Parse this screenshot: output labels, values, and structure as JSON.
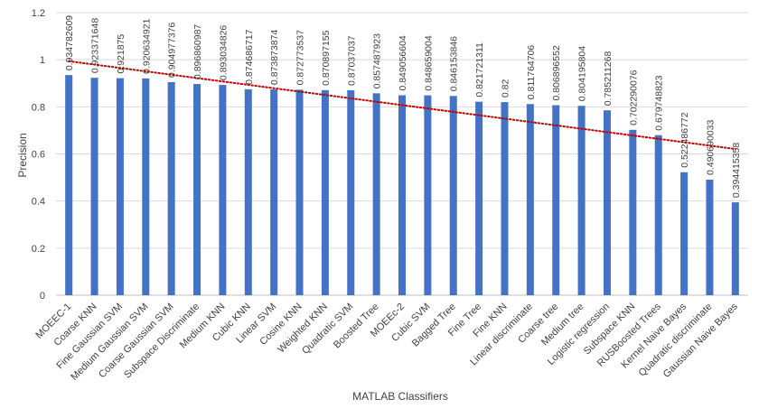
{
  "chart_data": {
    "type": "bar",
    "xlabel": "MATLAB Classifiers",
    "ylabel": "Precision",
    "ylim": [
      0,
      1.2
    ],
    "yticks": [
      "0",
      "0.2",
      "0.4",
      "0.6",
      "0.8",
      "1",
      "1.2"
    ],
    "grid": "horizontal",
    "legend": "none",
    "trendline": {
      "type": "linear",
      "style": "dotted",
      "color": "#c00000"
    },
    "bar_color": "#4472c4",
    "categories": [
      "MOEEC-1",
      "Coarse KNN",
      "Fine Gaussian SVM",
      "Medium Gaussian SVM",
      "Coarse Gaussian SVM",
      "Subspace Discriminate",
      "Medium KNN",
      "Cubic KNN",
      "Linear SVM",
      "Cosine KNN",
      "Weighted KNN",
      "Quadratic SVM",
      "Boosted Tree",
      "MOEEc-2",
      "Cubic SVM",
      "Bagged Tree",
      "Fine Tree",
      "Fine KNN",
      "Linear discriminate",
      "Coarse tree",
      "Medium tree",
      "Logistic regression",
      "Subspace KNN",
      "RUSBoosted Trees",
      "Kernel Naive Bayes",
      "Quadratic discriminate",
      "Gaussian Naive Bayes"
    ],
    "values": [
      0.934782609,
      0.923371648,
      0.921875,
      0.920634921,
      0.904977376,
      0.896860987,
      0.893034826,
      0.874686717,
      0.873873874,
      0.872773537,
      0.870897155,
      0.87037037,
      0.857487923,
      0.849056604,
      0.848659004,
      0.846153846,
      0.821721311,
      0.82,
      0.811764706,
      0.806896552,
      0.804195804,
      0.785211268,
      0.702290076,
      0.679748823,
      0.522486772,
      0.490690033,
      0.394415358
    ],
    "data_labels": [
      "0.934782609",
      "0.923371648",
      "0.921875",
      "0.920634921",
      "0.904977376",
      "0.896860987",
      "0.893034826",
      "0.874686717",
      "0.873873874",
      "0.872773537",
      "0.870897155",
      "0.87037037",
      "0.857487923",
      "0.849056604",
      "0.848659004",
      "0.846153846",
      "0.821721311",
      "0.82",
      "0.811764706",
      "0.806896552",
      "0.804195804",
      "0.785211268",
      "0.702290076",
      "0.679748823",
      "0.522486772",
      "0.490690033",
      "0.394415358"
    ]
  }
}
